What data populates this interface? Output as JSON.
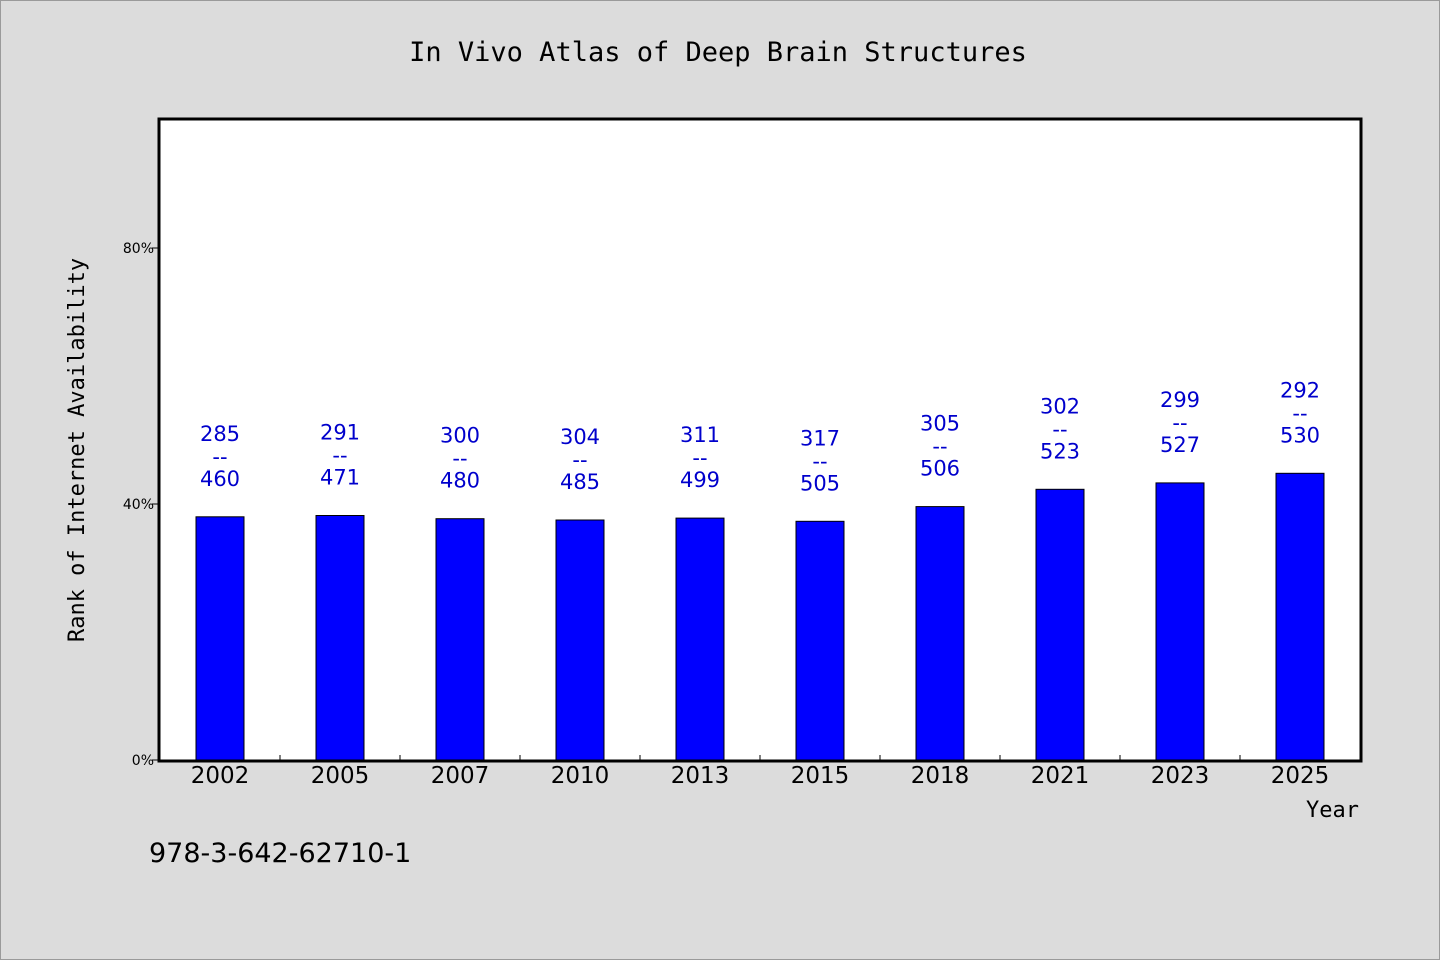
{
  "chart_data": {
    "type": "bar",
    "title": "In Vivo Atlas of Deep Brain Structures",
    "xlabel": "Year",
    "ylabel": "Rank of Internet Availability",
    "categories": [
      "2002",
      "2005",
      "2007",
      "2010",
      "2013",
      "2015",
      "2018",
      "2021",
      "2023",
      "2025"
    ],
    "series": [
      {
        "values": [
          38,
          38.2,
          37.7,
          37.5,
          37.8,
          37.3,
          39.6,
          42.3,
          43.3,
          44.8
        ],
        "labels_top": [
          "285",
          "291",
          "300",
          "304",
          "311",
          "317",
          "305",
          "302",
          "299",
          "292"
        ],
        "labels_bottom": [
          "460",
          "471",
          "480",
          "485",
          "499",
          "505",
          "506",
          "523",
          "527",
          "530"
        ],
        "label_separator": "--"
      }
    ],
    "yticks": [
      "0%",
      "40%",
      "80%"
    ],
    "ytick_values": [
      0,
      40,
      80
    ],
    "ylim": [
      0,
      100
    ],
    "grid": false,
    "colors": {
      "bar": "#0000ff",
      "label": "#0000cc",
      "background": "#dcdcdc",
      "plot_background": "#ffffff"
    }
  },
  "footer": {
    "isbn": "978-3-642-62710-1"
  }
}
